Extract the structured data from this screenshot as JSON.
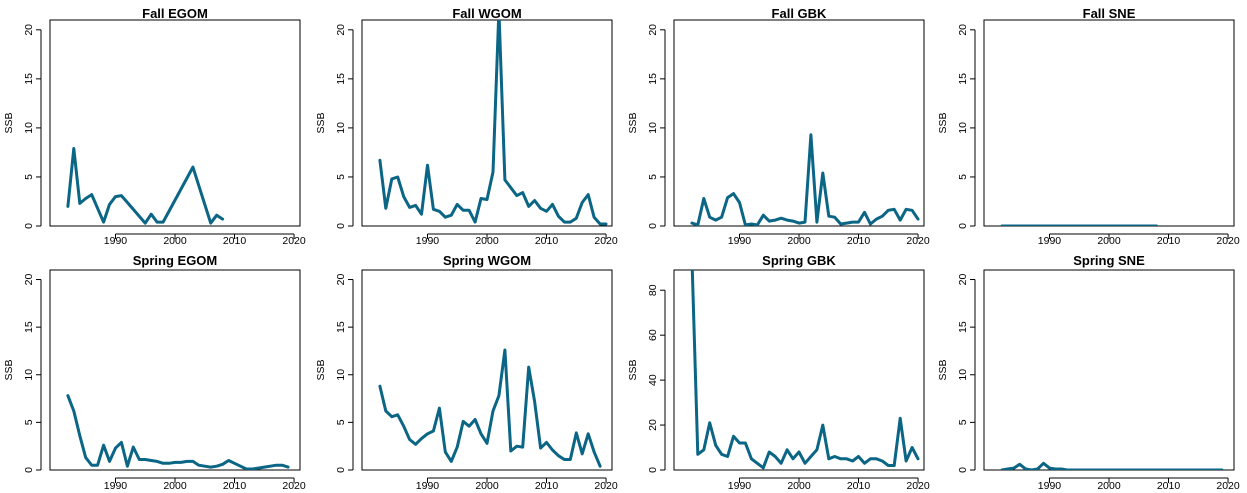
{
  "line_color": "#0b6585",
  "chart_data": [
    {
      "type": "line",
      "title": "Fall EGOM",
      "ylabel": "SSB",
      "xlabel": "",
      "xlim": [
        1979,
        2021
      ],
      "ylim": [
        0,
        21
      ],
      "xticks": [
        1990,
        2000,
        2010,
        2020
      ],
      "yticks": [
        0,
        5,
        10,
        15,
        20
      ],
      "x": [
        1982,
        1983,
        1984,
        1985,
        1986,
        1987,
        1988,
        1989,
        1990,
        1991,
        1995,
        1996,
        1997,
        1998,
        2003,
        2006,
        2007,
        2008
      ],
      "y": [
        2.0,
        7.9,
        2.3,
        2.8,
        3.2,
        1.8,
        0.4,
        2.2,
        3.0,
        3.1,
        0.3,
        1.2,
        0.4,
        0.4,
        6.0,
        0.3,
        1.1,
        0.7
      ]
    },
    {
      "type": "line",
      "title": "Fall WGOM",
      "ylabel": "SSB",
      "xlabel": "",
      "xlim": [
        1979,
        2021
      ],
      "ylim": [
        0,
        21
      ],
      "xticks": [
        1990,
        2000,
        2010,
        2020
      ],
      "yticks": [
        0,
        5,
        10,
        15,
        20
      ],
      "x": [
        1982,
        1983,
        1984,
        1985,
        1986,
        1987,
        1988,
        1989,
        1990,
        1991,
        1992,
        1993,
        1994,
        1995,
        1996,
        1997,
        1998,
        1999,
        2000,
        2001,
        2002,
        2003,
        2004,
        2005,
        2006,
        2007,
        2008,
        2009,
        2010,
        2011,
        2012,
        2013,
        2014,
        2015,
        2016,
        2017,
        2018,
        2019,
        2020
      ],
      "y": [
        6.7,
        1.8,
        4.8,
        5.0,
        3.0,
        1.9,
        2.1,
        1.2,
        6.2,
        1.7,
        1.5,
        0.9,
        1.1,
        2.2,
        1.6,
        1.6,
        0.4,
        2.8,
        2.7,
        5.5,
        22.0,
        4.7,
        3.9,
        3.1,
        3.4,
        2.0,
        2.6,
        1.8,
        1.5,
        2.2,
        1.0,
        0.4,
        0.4,
        0.8,
        2.4,
        3.2,
        0.9,
        0.2,
        0.2
      ]
    },
    {
      "type": "line",
      "title": "Fall GBK",
      "ylabel": "SSB",
      "xlabel": "",
      "xlim": [
        1979,
        2021
      ],
      "ylim": [
        0,
        21
      ],
      "xticks": [
        1990,
        2000,
        2010,
        2020
      ],
      "yticks": [
        0,
        5,
        10,
        15,
        20
      ],
      "x": [
        1982,
        1983,
        1984,
        1985,
        1986,
        1987,
        1988,
        1989,
        1990,
        1991,
        1992,
        1993,
        1994,
        1995,
        1996,
        1997,
        1998,
        1999,
        2000,
        2001,
        2002,
        2003,
        2004,
        2005,
        2006,
        2007,
        2008,
        2009,
        2010,
        2011,
        2012,
        2013,
        2014,
        2015,
        2016,
        2017,
        2018,
        2019,
        2020
      ],
      "y": [
        0.3,
        0.1,
        2.8,
        0.9,
        0.6,
        0.9,
        2.9,
        3.3,
        2.4,
        0.1,
        0.2,
        0.1,
        1.1,
        0.5,
        0.6,
        0.8,
        0.6,
        0.5,
        0.3,
        0.4,
        9.3,
        0.4,
        5.4,
        1.0,
        0.9,
        0.2,
        0.3,
        0.4,
        0.4,
        1.4,
        0.2,
        0.7,
        1.0,
        1.6,
        1.7,
        0.6,
        1.7,
        1.6,
        0.7
      ]
    },
    {
      "type": "line",
      "title": "Fall SNE",
      "ylabel": "SSB",
      "xlabel": "",
      "xlim": [
        1979,
        2021
      ],
      "ylim": [
        0,
        21
      ],
      "xticks": [
        1990,
        2000,
        2010,
        2020
      ],
      "yticks": [
        0,
        5,
        10,
        15,
        20
      ],
      "x": [
        1982,
        1990,
        2000,
        2008
      ],
      "y": [
        0,
        0,
        0,
        0
      ]
    },
    {
      "type": "line",
      "title": "Spring EGOM",
      "ylabel": "SSB",
      "xlabel": "",
      "xlim": [
        1979,
        2021
      ],
      "ylim": [
        0,
        21
      ],
      "xticks": [
        1990,
        2000,
        2010,
        2020
      ],
      "yticks": [
        0,
        5,
        10,
        15,
        20
      ],
      "x": [
        1982,
        1983,
        1984,
        1985,
        1986,
        1987,
        1988,
        1989,
        1990,
        1991,
        1992,
        1993,
        1994,
        1995,
        1996,
        1997,
        1998,
        1999,
        2000,
        2001,
        2002,
        2003,
        2004,
        2005,
        2006,
        2007,
        2008,
        2009,
        2010,
        2011,
        2012,
        2013,
        2014,
        2015,
        2016,
        2017,
        2018,
        2019
      ],
      "y": [
        7.8,
        6.2,
        3.6,
        1.3,
        0.5,
        0.5,
        2.6,
        0.9,
        2.3,
        2.9,
        0.4,
        2.4,
        1.1,
        1.1,
        1.0,
        0.9,
        0.7,
        0.7,
        0.8,
        0.8,
        0.9,
        0.9,
        0.5,
        0.4,
        0.3,
        0.4,
        0.6,
        1.0,
        0.7,
        0.4,
        0.1,
        0.1,
        0.2,
        0.3,
        0.4,
        0.5,
        0.5,
        0.3
      ]
    },
    {
      "type": "line",
      "title": "Spring WGOM",
      "ylabel": "SSB",
      "xlabel": "",
      "xlim": [
        1979,
        2021
      ],
      "ylim": [
        0,
        21
      ],
      "xticks": [
        1990,
        2000,
        2010,
        2020
      ],
      "yticks": [
        0,
        5,
        10,
        15,
        20
      ],
      "x": [
        1982,
        1983,
        1984,
        1985,
        1986,
        1987,
        1988,
        1989,
        1990,
        1991,
        1992,
        1993,
        1994,
        1995,
        1996,
        1997,
        1998,
        1999,
        2000,
        2001,
        2002,
        2003,
        2004,
        2005,
        2006,
        2007,
        2008,
        2009,
        2010,
        2011,
        2012,
        2013,
        2014,
        2015,
        2016,
        2017,
        2018,
        2019
      ],
      "y": [
        8.8,
        6.2,
        5.6,
        5.8,
        4.6,
        3.2,
        2.7,
        3.3,
        3.8,
        4.1,
        6.5,
        1.9,
        0.9,
        2.4,
        5.1,
        4.6,
        5.3,
        3.8,
        2.8,
        6.2,
        7.8,
        12.6,
        2.0,
        2.5,
        2.4,
        10.8,
        7.2,
        2.3,
        2.9,
        2.1,
        1.5,
        1.1,
        1.1,
        3.9,
        1.7,
        3.8,
        1.9,
        0.4
      ]
    },
    {
      "type": "line",
      "title": "Spring GBK",
      "ylabel": "SSB",
      "xlabel": "",
      "xlim": [
        1979,
        2021
      ],
      "ylim": [
        0,
        89
      ],
      "xticks": [
        1990,
        2000,
        2010,
        2020
      ],
      "yticks": [
        0,
        20,
        40,
        60,
        80
      ],
      "x": [
        1982,
        1983,
        1984,
        1985,
        1986,
        1987,
        1988,
        1989,
        1990,
        1991,
        1992,
        1993,
        1994,
        1995,
        1996,
        1997,
        1998,
        1999,
        2000,
        2001,
        2002,
        2003,
        2004,
        2005,
        2006,
        2007,
        2008,
        2009,
        2010,
        2011,
        2012,
        2013,
        2014,
        2015,
        2016,
        2017,
        2018,
        2019,
        2020
      ],
      "y": [
        95,
        7,
        9,
        21,
        11,
        7,
        6,
        15,
        12,
        12,
        5,
        3,
        1,
        8,
        6,
        3,
        9,
        5,
        8,
        3,
        6,
        9,
        20,
        5,
        6,
        5,
        5,
        4,
        6,
        3,
        5,
        5,
        4,
        2,
        2,
        23,
        4,
        10,
        5
      ]
    },
    {
      "type": "line",
      "title": "Spring SNE",
      "ylabel": "SSB",
      "xlabel": "",
      "xlim": [
        1979,
        2021
      ],
      "ylim": [
        0,
        21
      ],
      "xticks": [
        1990,
        2000,
        2010,
        2020
      ],
      "yticks": [
        0,
        5,
        10,
        15,
        20
      ],
      "x": [
        1982,
        1983,
        1984,
        1985,
        1986,
        1987,
        1988,
        1989,
        1990,
        1991,
        1992,
        1993,
        2000,
        2010,
        2019
      ],
      "y": [
        0.0,
        0.1,
        0.2,
        0.6,
        0.1,
        0.0,
        0.1,
        0.7,
        0.2,
        0.1,
        0.1,
        0.0,
        0.0,
        0.0,
        0.0
      ]
    }
  ]
}
